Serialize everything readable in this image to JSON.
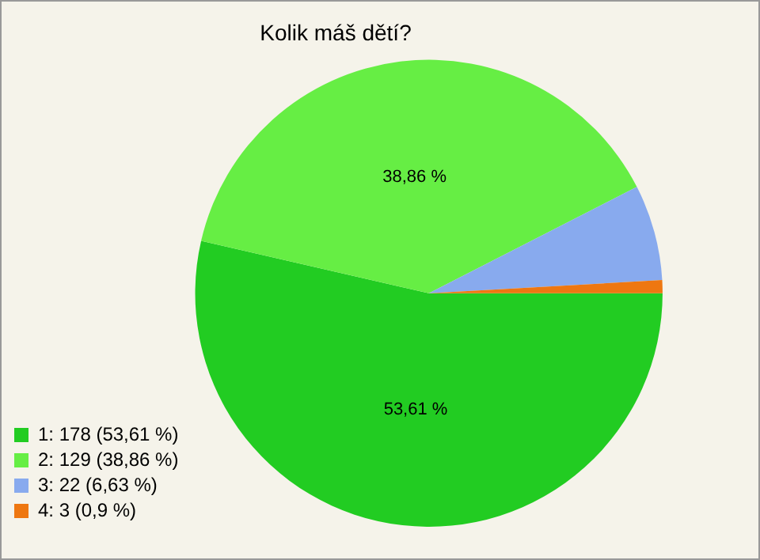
{
  "chart_data": {
    "type": "pie",
    "title": "Kolik máš dětí?",
    "categories": [
      "1: 178 (53,61 %)",
      "2: 129 (38,86 %)",
      "3: 22 (6,63 %)",
      "4: 3 (0,9 %)"
    ],
    "values": [
      53.61,
      38.86,
      6.63,
      0.9
    ],
    "colors": [
      "#22cc22",
      "#66ee44",
      "#88aaee",
      "#ee7711"
    ],
    "value_labels": [
      "53,61 %",
      "38,86 %",
      null,
      null
    ],
    "legend": "bottom left"
  }
}
